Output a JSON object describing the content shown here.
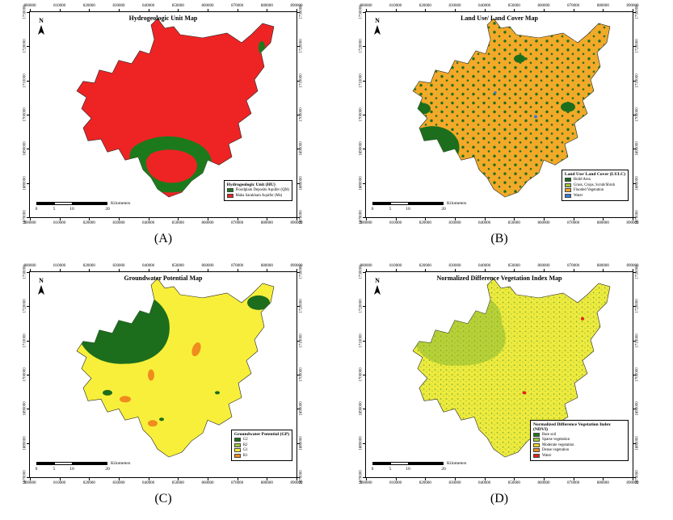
{
  "figure": {
    "panels": [
      {
        "label": "(A)",
        "title": "Hydrogeologic Unit Map",
        "north": "N",
        "map_base_color": "#ee2424",
        "x_ticks": [
          "800000",
          "810000",
          "820000",
          "830000",
          "840000",
          "850000",
          "860000",
          "870000",
          "880000",
          "890000"
        ],
        "y_ticks": [
          "1730000",
          "1720000",
          "1710000",
          "1700000",
          "1690000",
          "1680000",
          "1670000"
        ],
        "scalebar": {
          "ticks": [
            "0",
            "5",
            "10",
            "20"
          ],
          "unit": "Kilometers"
        },
        "legend": {
          "title": "Hydrogeologic Unit (HU)",
          "items": [
            {
              "label": "Floodplain Deposits Aquifer (Qfd)",
              "color": "#1c7a1c"
            },
            {
              "label": "Maha Sarakham Aquifer (Ms)",
              "color": "#ee2424"
            }
          ]
        }
      },
      {
        "label": "(B)",
        "title": "Land Use/ Land Cover Map",
        "north": "N",
        "map_base_color": "#f4a928",
        "x_ticks": [
          "800000",
          "810000",
          "820000",
          "830000",
          "840000",
          "850000",
          "860000",
          "870000",
          "880000",
          "890000"
        ],
        "y_ticks": [
          "1730000",
          "1720000",
          "1710000",
          "1700000",
          "1690000",
          "1680000",
          "1670000"
        ],
        "scalebar": {
          "ticks": [
            "0",
            "5",
            "10",
            "20"
          ],
          "unit": "Kilometers"
        },
        "legend": {
          "title": "Land Use/ Land Cover (LULC)",
          "items": [
            {
              "label": "Build Area",
              "color": "#1c6e1c"
            },
            {
              "label": "Grass, Crops, Scrub/Shrub",
              "color": "#a4c63a"
            },
            {
              "label": "Flooded Vegetation",
              "color": "#f4a928"
            },
            {
              "label": "Water",
              "color": "#3a7bd5"
            }
          ]
        }
      },
      {
        "label": "(C)",
        "title": "Groundwater Potential Map",
        "north": "N",
        "map_base_color": "#f8ef3a",
        "x_ticks": [
          "800000",
          "810000",
          "820000",
          "830000",
          "840000",
          "850000",
          "860000",
          "870000",
          "880000",
          "890000"
        ],
        "y_ticks": [
          "1730000",
          "1720000",
          "1710000",
          "1700000",
          "1690000",
          "1680000",
          "1670000"
        ],
        "scalebar": {
          "ticks": [
            "0",
            "5",
            "10",
            "20"
          ],
          "unit": "Kilometers"
        },
        "legend": {
          "title": "Groundwater Potential (GP)",
          "items": [
            {
              "label": "G2",
              "color": "#1c6e1c"
            },
            {
              "label": "R2",
              "color": "#a4c63a"
            },
            {
              "label": "G1",
              "color": "#f8ef3a"
            },
            {
              "label": "R1",
              "color": "#f08b1e"
            }
          ]
        }
      },
      {
        "label": "(D)",
        "title": "Normalized Difference Vegetation Index Map",
        "north": "N",
        "map_base_color": "#eeea3e",
        "x_ticks": [
          "800000",
          "810000",
          "820000",
          "830000",
          "840000",
          "850000",
          "860000",
          "870000",
          "880000",
          "890000"
        ],
        "y_ticks": [
          "1730000",
          "1720000",
          "1710000",
          "1700000",
          "1690000",
          "1680000",
          "1670000"
        ],
        "scalebar": {
          "ticks": [
            "0",
            "5",
            "10",
            "20"
          ],
          "unit": "Kilometers"
        },
        "legend": {
          "title": "Normalized Difference Vegetation Index (NDVI)",
          "items": [
            {
              "label": "Bare soil",
              "color": "#1c7a1c"
            },
            {
              "label": "Sparse vegetation",
              "color": "#9ccc3c"
            },
            {
              "label": "Moderate vegetation",
              "color": "#f5d327"
            },
            {
              "label": "Dense vegetation",
              "color": "#f08b1e"
            },
            {
              "label": "Water",
              "color": "#e2231a"
            }
          ]
        }
      }
    ]
  }
}
